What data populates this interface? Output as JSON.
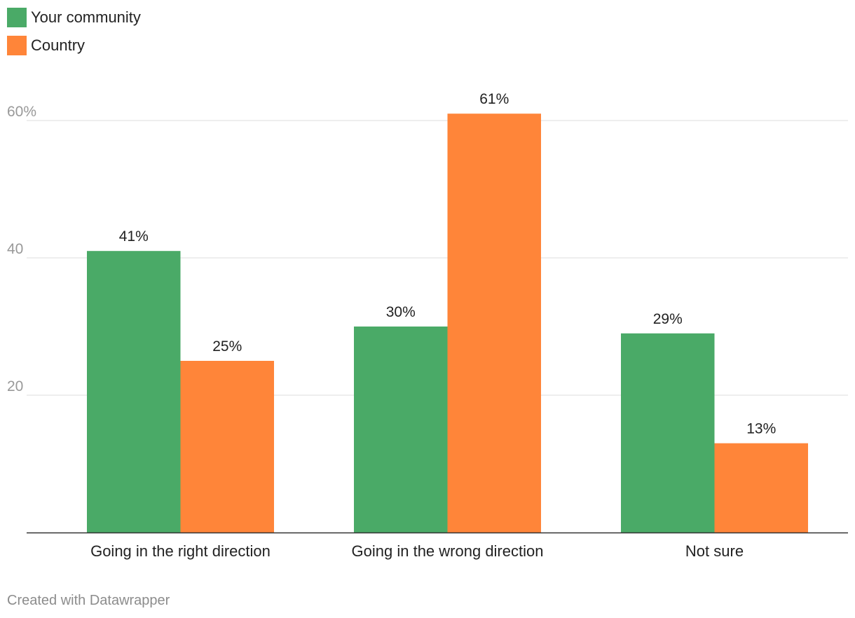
{
  "chart_data": {
    "type": "bar",
    "categories": [
      "Going in the right direction",
      "Going in the wrong direction",
      "Not sure"
    ],
    "series": [
      {
        "name": "Your community",
        "color": "#4aaa67",
        "values": [
          41,
          30,
          29
        ],
        "labels": [
          "41%",
          "30%",
          "29%"
        ]
      },
      {
        "name": "Country",
        "color": "#ff8539",
        "values": [
          25,
          61,
          13
        ],
        "labels": [
          "25%",
          "61%",
          "13%"
        ]
      }
    ],
    "yticks": [
      {
        "value": 20,
        "label": "20"
      },
      {
        "value": 40,
        "label": "40"
      },
      {
        "value": 60,
        "label": "60%"
      }
    ],
    "ylim": [
      0,
      60
    ],
    "title": "",
    "xlabel": "",
    "ylabel": "",
    "grid": true,
    "legend": "top-left"
  },
  "footer": {
    "credit": "Created with Datawrapper"
  }
}
